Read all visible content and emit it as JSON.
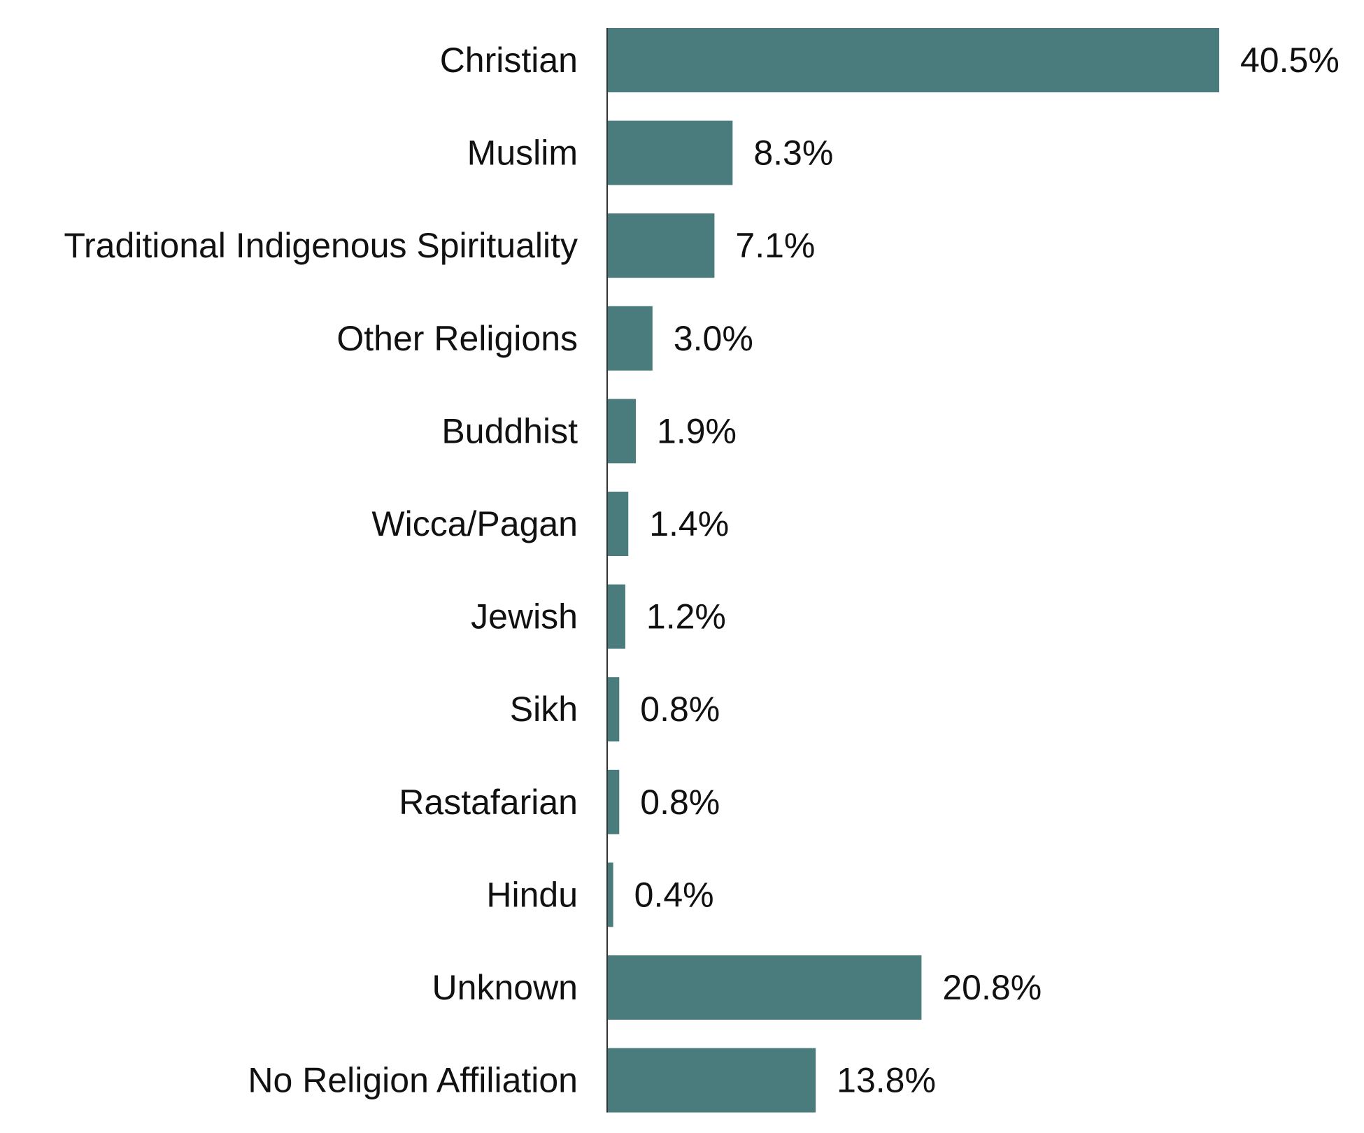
{
  "chart_data": {
    "type": "bar",
    "orientation": "horizontal",
    "categories": [
      "Christian",
      "Muslim",
      "Traditional Indigenous Spirituality",
      "Other Religions",
      "Buddhist",
      "Wicca/Pagan",
      "Jewish",
      "Sikh",
      "Rastafarian",
      "Hindu",
      "Unknown",
      "No Religion Affiliation"
    ],
    "values": [
      40.5,
      8.3,
      7.1,
      3.0,
      1.9,
      1.4,
      1.2,
      0.8,
      0.8,
      0.4,
      20.8,
      13.8
    ],
    "value_labels": [
      "40.5%",
      "8.3%",
      "7.1%",
      "3.0%",
      "1.9%",
      "1.4%",
      "1.2%",
      "0.8%",
      "0.8%",
      "0.4%",
      "20.8%",
      "13.8%"
    ],
    "xlim": [
      0,
      40.5
    ],
    "grid": false,
    "legend": "none",
    "bar_color": "#4a7c7e",
    "axis_color": "#333333"
  }
}
